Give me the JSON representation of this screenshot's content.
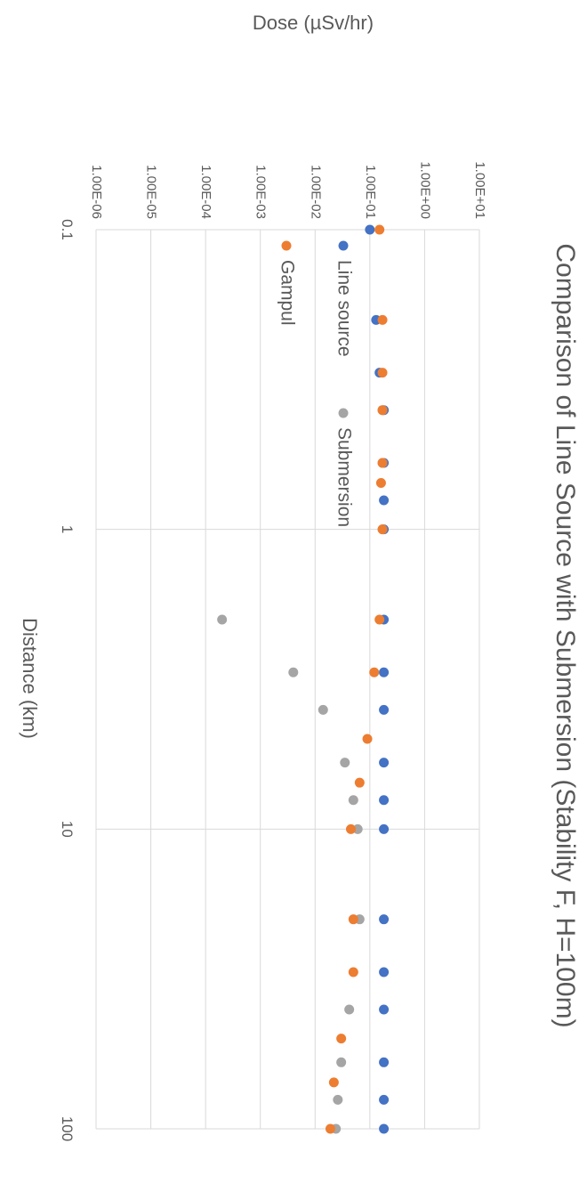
{
  "chart_data": {
    "type": "scatter",
    "title": "Comparison of Line Source with Submersion (Stability F, H=100m)",
    "xlabel": "Distance (km)",
    "ylabel": "Dose (µSv/hr)",
    "x_scale": "log",
    "y_scale": "log",
    "xlim": [
      0.1,
      100
    ],
    "ylim": [
      1e-06,
      10
    ],
    "grid": true,
    "legend_position": "left-top",
    "x_ticks": [
      "0.1",
      "1",
      "10",
      "100"
    ],
    "y_ticks": [
      "1.00E-06",
      "1.00E-05",
      "1.00E-04",
      "1.00E-03",
      "1.00E-02",
      "1.00E-01",
      "1.00E+00",
      "1.00E+01"
    ],
    "orientation": "rotated 90° clockwise",
    "series": [
      {
        "name": "Line source",
        "color": "#4472C4",
        "points": [
          [
            0.1,
            0.1
          ],
          [
            0.2,
            0.13
          ],
          [
            0.3,
            0.15
          ],
          [
            0.4,
            0.18
          ],
          [
            0.6,
            0.18
          ],
          [
            0.8,
            0.18
          ],
          [
            1,
            0.18
          ],
          [
            2,
            0.18
          ],
          [
            3,
            0.18
          ],
          [
            4,
            0.18
          ],
          [
            6,
            0.18
          ],
          [
            8,
            0.18
          ],
          [
            10,
            0.18
          ],
          [
            20,
            0.18
          ],
          [
            30,
            0.18
          ],
          [
            40,
            0.18
          ],
          [
            60,
            0.18
          ],
          [
            80,
            0.18
          ],
          [
            100,
            0.18
          ]
        ]
      },
      {
        "name": "Submersion",
        "color": "#A5A5A5",
        "points": [
          [
            0.4,
            0.17
          ],
          [
            0.6,
            0.17
          ],
          [
            1,
            0.17
          ],
          [
            2,
            0.0002
          ],
          [
            3,
            0.004
          ],
          [
            4,
            0.014
          ],
          [
            6,
            0.035
          ],
          [
            8,
            0.05
          ],
          [
            10,
            0.06
          ],
          [
            20,
            0.065
          ],
          [
            40,
            0.042
          ],
          [
            60,
            0.03
          ],
          [
            80,
            0.026
          ],
          [
            100,
            0.024
          ]
        ]
      },
      {
        "name": "Gampul",
        "color": "#ED7D31",
        "points": [
          [
            0.1,
            0.15
          ],
          [
            0.2,
            0.17
          ],
          [
            0.3,
            0.17
          ],
          [
            0.4,
            0.17
          ],
          [
            0.6,
            0.17
          ],
          [
            0.7,
            0.16
          ],
          [
            1,
            0.17
          ],
          [
            2,
            0.15
          ],
          [
            3,
            0.12
          ],
          [
            5,
            0.09
          ],
          [
            7,
            0.065
          ],
          [
            10,
            0.045
          ],
          [
            20,
            0.05
          ],
          [
            30,
            0.05
          ],
          [
            50,
            0.03
          ],
          [
            70,
            0.022
          ],
          [
            100,
            0.019
          ]
        ]
      }
    ]
  }
}
